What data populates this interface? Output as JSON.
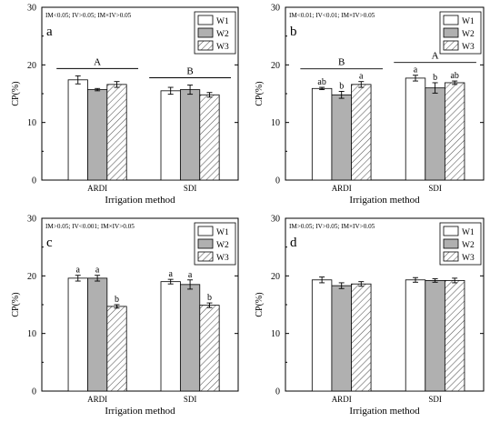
{
  "chart_data": [
    {
      "type": "bar",
      "panel_label": "a",
      "stats_text": "IM<0.05; IV>0.05; IM×IV>0.05",
      "xlabel": "Irrigation method",
      "ylabel": "CP(%)",
      "categories": [
        "ARDI",
        "SDI"
      ],
      "ylim": [
        0,
        30
      ],
      "yticks": [
        0,
        10,
        20,
        30
      ],
      "series": [
        {
          "name": "W1",
          "values": [
            17.4,
            15.5
          ],
          "errors": [
            0.7,
            0.6
          ],
          "letters": [
            "",
            ""
          ]
        },
        {
          "name": "W2",
          "values": [
            15.7,
            15.7
          ],
          "errors": [
            0.2,
            0.8
          ],
          "letters": [
            "",
            ""
          ]
        },
        {
          "name": "W3",
          "values": [
            16.6,
            14.8
          ],
          "errors": [
            0.5,
            0.4
          ],
          "letters": [
            "",
            ""
          ]
        }
      ],
      "group_letters": [
        "A",
        "B"
      ]
    },
    {
      "type": "bar",
      "panel_label": "b",
      "stats_text": "IM<0.01; IV<0.01; IM×IV>0.05",
      "xlabel": "Irrigation method",
      "ylabel": "CP(%)",
      "categories": [
        "ARDI",
        "SDI"
      ],
      "ylim": [
        0,
        30
      ],
      "yticks": [
        0,
        10,
        20,
        30
      ],
      "series": [
        {
          "name": "W1",
          "values": [
            15.9,
            17.7
          ],
          "errors": [
            0.2,
            0.5
          ],
          "letters": [
            "ab",
            "a"
          ]
        },
        {
          "name": "W2",
          "values": [
            14.8,
            16.0
          ],
          "errors": [
            0.6,
            0.9
          ],
          "letters": [
            "b",
            "b"
          ]
        },
        {
          "name": "W3",
          "values": [
            16.6,
            16.9
          ],
          "errors": [
            0.5,
            0.3
          ],
          "letters": [
            "a",
            "ab"
          ]
        }
      ],
      "group_letters": [
        "B",
        "A"
      ]
    },
    {
      "type": "bar",
      "panel_label": "c",
      "stats_text": "IM>0.05; IV<0.001; IM×IV>0.05",
      "xlabel": "Irrigation method",
      "ylabel": "CP(%)",
      "categories": [
        "ARDI",
        "SDI"
      ],
      "ylim": [
        0,
        30
      ],
      "yticks": [
        0,
        10,
        20,
        30
      ],
      "series": [
        {
          "name": "W1",
          "values": [
            19.6,
            19.0
          ],
          "errors": [
            0.5,
            0.4
          ],
          "letters": [
            "a",
            "a"
          ]
        },
        {
          "name": "W2",
          "values": [
            19.6,
            18.5
          ],
          "errors": [
            0.5,
            0.8
          ],
          "letters": [
            "a",
            "a"
          ]
        },
        {
          "name": "W3",
          "values": [
            14.7,
            14.9
          ],
          "errors": [
            0.3,
            0.4
          ],
          "letters": [
            "b",
            "b"
          ]
        }
      ],
      "group_letters": [
        "",
        ""
      ]
    },
    {
      "type": "bar",
      "panel_label": "d",
      "stats_text": "IM>0.05; IV>0.05; IM×IV>0.05",
      "xlabel": "Irrigation method",
      "ylabel": "CP(%)",
      "categories": [
        "ARDI",
        "SDI"
      ],
      "ylim": [
        0,
        30
      ],
      "yticks": [
        0,
        10,
        20,
        30
      ],
      "series": [
        {
          "name": "W1",
          "values": [
            19.3,
            19.3
          ],
          "errors": [
            0.5,
            0.4
          ],
          "letters": [
            "",
            ""
          ]
        },
        {
          "name": "W2",
          "values": [
            18.3,
            19.2
          ],
          "errors": [
            0.5,
            0.3
          ],
          "letters": [
            "",
            ""
          ]
        },
        {
          "name": "W3",
          "values": [
            18.6,
            19.2
          ],
          "errors": [
            0.4,
            0.4
          ],
          "letters": [
            "",
            ""
          ]
        }
      ],
      "group_letters": [
        "",
        ""
      ]
    }
  ]
}
